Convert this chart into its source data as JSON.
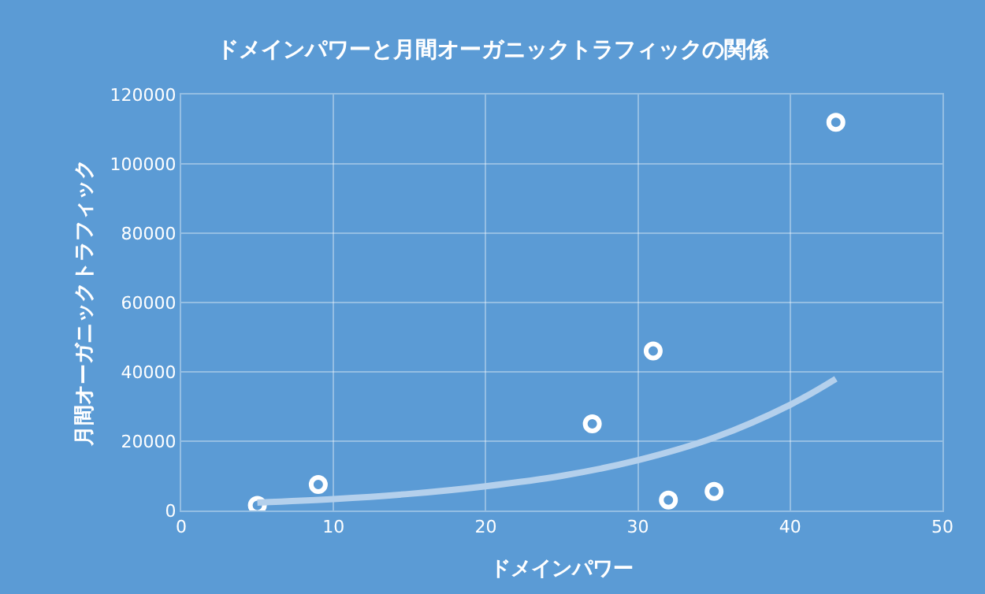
{
  "chart_data": {
    "type": "scatter",
    "title": "ドメインパワーと月間オーガニックトラフィックの関係",
    "xlabel": "ドメインパワー",
    "ylabel": "月間オーガニックトラフィック",
    "xlim": [
      0,
      50
    ],
    "xticks": [
      0,
      10,
      20,
      30,
      40,
      50
    ],
    "ylim": [
      0,
      120000
    ],
    "yticks": [
      0,
      20000,
      40000,
      60000,
      80000,
      100000,
      120000
    ],
    "grid": true,
    "marker": "circle",
    "series": [
      {
        "color": "#ffffff",
        "x": [
          5,
          9,
          27,
          31,
          32,
          35,
          43
        ],
        "values": [
          1500,
          7500,
          25000,
          46000,
          3000,
          5500,
          112000
        ]
      },
      {
        "type": "line",
        "marker": "none",
        "color": "#b4d0ec",
        "x": [
          5,
          10,
          15,
          20,
          25,
          30,
          35,
          40,
          43
        ],
        "values": [
          2300,
          3300,
          4800,
          7000,
          10000,
          14500,
          21000,
          30500,
          38000
        ]
      }
    ]
  }
}
